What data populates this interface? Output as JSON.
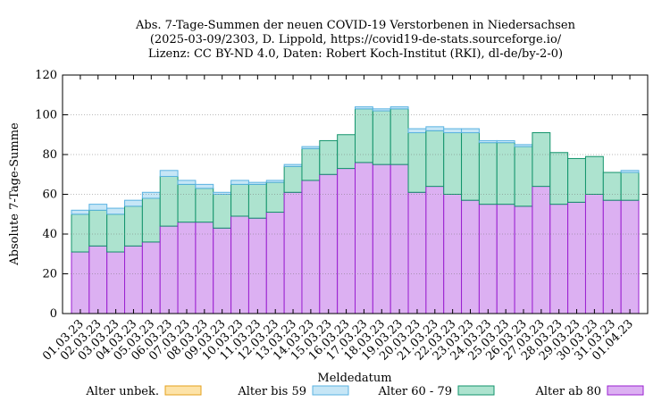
{
  "chart_data": {
    "type": "bar",
    "stacked": true,
    "title_lines": [
      "Abs. 7-Tage-Summen der neuen COVID-19 Verstorbenen in Niedersachsen",
      "(2025-03-09/2303, D. Lippold, https://covid19-de-stats.sourceforge.io/",
      "Lizenz: CC BY-ND 4.0, Daten: Robert Koch-Institut (RKI), dl-de/by-2-0)"
    ],
    "xlabel": "Meldedatum",
    "ylabel": "Absolute 7-Tage-Summe",
    "ylim": [
      0,
      120
    ],
    "yticks": [
      0,
      20,
      40,
      60,
      80,
      100,
      120
    ],
    "categories": [
      "01.03.23",
      "02.03.23",
      "03.03.23",
      "04.03.23",
      "05.03.23",
      "06.03.23",
      "07.03.23",
      "08.03.23",
      "09.03.23",
      "10.03.23",
      "11.03.23",
      "12.03.23",
      "13.03.23",
      "14.03.23",
      "15.03.23",
      "16.03.23",
      "17.03.23",
      "18.03.23",
      "19.03.23",
      "20.03.23",
      "21.03.23",
      "22.03.23",
      "23.03.23",
      "24.03.23",
      "25.03.23",
      "26.03.23",
      "27.03.23",
      "28.03.23",
      "29.03.23",
      "30.03.23",
      "31.03.23",
      "01.04.23"
    ],
    "series": [
      {
        "name": "Alter ab 80",
        "fill": "#dcb0f2",
        "stroke": "#9a1fd0",
        "values": [
          31,
          34,
          31,
          34,
          36,
          44,
          46,
          46,
          43,
          49,
          48,
          51,
          61,
          67,
          70,
          73,
          76,
          75,
          75,
          61,
          64,
          60,
          57,
          55,
          55,
          54,
          64,
          55,
          56,
          60,
          57,
          57
        ]
      },
      {
        "name": "Alter 60 - 79",
        "fill": "#ade3cf",
        "stroke": "#12936b",
        "values": [
          19,
          18,
          19,
          20,
          22,
          25,
          19,
          17,
          17,
          16,
          17,
          15,
          13,
          16,
          17,
          17,
          27,
          27,
          28,
          30,
          28,
          31,
          34,
          31,
          31,
          30,
          27,
          26,
          22,
          19,
          14,
          14
        ]
      },
      {
        "name": "Alter bis 59",
        "fill": "#c6e6f6",
        "stroke": "#5bb3e2",
        "values": [
          2,
          3,
          3,
          3,
          3,
          3,
          2,
          2,
          1,
          2,
          1,
          1,
          1,
          1,
          0,
          0,
          1,
          1,
          1,
          2,
          2,
          2,
          2,
          1,
          1,
          1,
          0,
          0,
          0,
          0,
          0,
          1
        ]
      },
      {
        "name": "Alter unbek.",
        "fill": "#fde3a8",
        "stroke": "#e4a01c",
        "values": [
          0,
          0,
          0,
          0,
          0,
          0,
          0,
          0,
          0,
          0,
          0,
          0,
          0,
          0,
          0,
          0,
          0,
          0,
          0,
          0,
          0,
          0,
          0,
          0,
          0,
          0,
          0,
          0,
          0,
          0,
          0,
          0
        ]
      }
    ],
    "legend_order": [
      "Alter unbek.",
      "Alter bis 59",
      "Alter 60 - 79",
      "Alter ab 80"
    ],
    "legend_position": "bottom"
  }
}
